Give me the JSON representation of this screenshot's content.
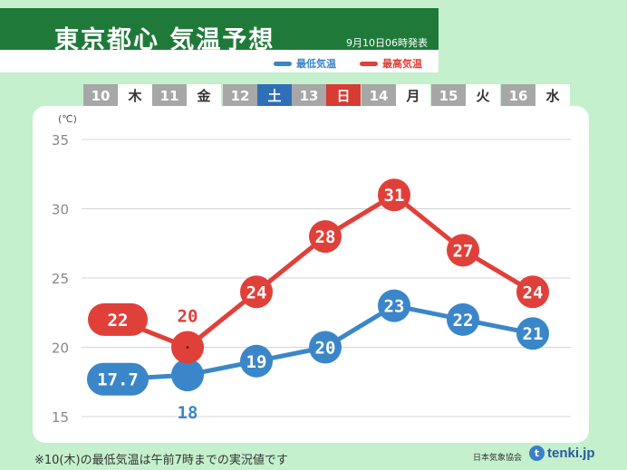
{
  "header": {
    "title": "東京都心 気温予想",
    "issued": "9月10日06時発表"
  },
  "legend": {
    "min_label": "最低気温",
    "max_label": "最高気温"
  },
  "days": [
    {
      "date": "10",
      "weekday": "木",
      "kind": "weekday"
    },
    {
      "date": "11",
      "weekday": "金",
      "kind": "weekday"
    },
    {
      "date": "12",
      "weekday": "土",
      "kind": "sat"
    },
    {
      "date": "13",
      "weekday": "日",
      "kind": "sun"
    },
    {
      "date": "14",
      "weekday": "月",
      "kind": "weekday"
    },
    {
      "date": "15",
      "weekday": "火",
      "kind": "weekday"
    },
    {
      "date": "16",
      "weekday": "水",
      "kind": "weekday"
    }
  ],
  "chart_data": {
    "type": "line",
    "categories": [
      "10",
      "11",
      "12",
      "13",
      "14",
      "15",
      "16"
    ],
    "ylabel": "(℃)",
    "ylim": [
      15,
      35
    ],
    "yticks": [
      15,
      20,
      25,
      30,
      35
    ],
    "grid": true,
    "legend_position": "top-right",
    "series": [
      {
        "name": "最高気温",
        "color": "#e0403a",
        "values": [
          22,
          20,
          24,
          28,
          31,
          27,
          24
        ],
        "labels": [
          "22",
          "20",
          "24",
          "28",
          "31",
          "27",
          "24"
        ]
      },
      {
        "name": "最低気温",
        "color": "#3a86c8",
        "values": [
          17.7,
          18,
          19,
          20,
          23,
          22,
          21
        ],
        "labels": [
          "17.7",
          "18",
          "19",
          "20",
          "23",
          "22",
          "21"
        ]
      }
    ]
  },
  "footer": {
    "note": "※10(木)の最低気温は午前7時までの実況値です",
    "source": "日本気象協会",
    "brand": "tenki.jp",
    "brand_icon": "t"
  }
}
